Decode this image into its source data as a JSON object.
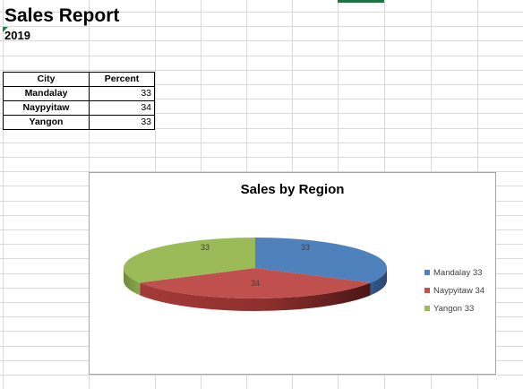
{
  "sheet": {
    "title": "Sales Report",
    "year": "2019"
  },
  "table": {
    "headers": [
      "City",
      "Percent"
    ],
    "rows": [
      {
        "city": "Mandalay",
        "percent": "33"
      },
      {
        "city": "Naypyitaw",
        "percent": "34"
      },
      {
        "city": "Yangon",
        "percent": "33"
      }
    ]
  },
  "chart_data": {
    "type": "pie",
    "title": "Sales by Region",
    "categories": [
      "Mandalay",
      "Naypyitaw",
      "Yangon"
    ],
    "values": [
      33,
      34,
      33
    ],
    "data_labels": [
      "33",
      "34",
      "33"
    ],
    "legend": [
      "Mandalay 33",
      "Naypyitaw 34",
      "Yangon 33"
    ],
    "legend_position": "right",
    "colors": [
      "#4f81bd",
      "#c0504d",
      "#9bbb59"
    ],
    "style": "3d"
  }
}
